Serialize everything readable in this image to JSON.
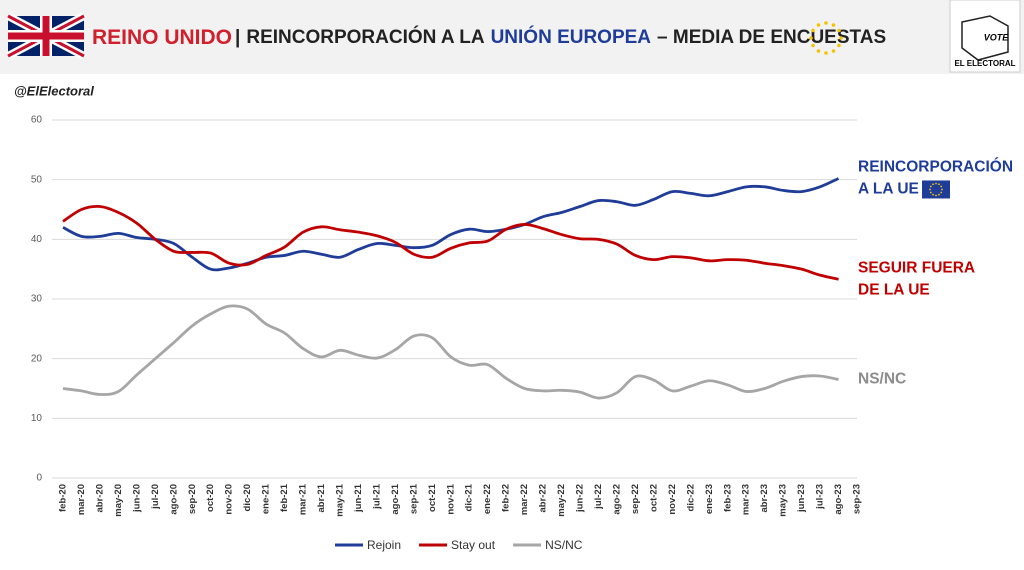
{
  "header": {
    "title_parts": [
      {
        "text": "REINO UNIDO",
        "color": "#d0202e"
      },
      {
        "text": "|",
        "color": "#222222"
      },
      {
        "text": "REINCORPORACIÓN A LA",
        "color": "#222222"
      },
      {
        "text": "UNIÓN EUROPEA",
        "color": "#1f3c99"
      },
      {
        "text": "– MEDIA DE ENCUESTAS",
        "color": "#222222"
      }
    ],
    "logo": {
      "vote": "VOTE",
      "name": "EL ELECTORAL"
    }
  },
  "source": "@ElElectoral",
  "chart_data": {
    "type": "line",
    "categories": [
      "feb-20",
      "mar-20",
      "abr-20",
      "may-20",
      "jun-20",
      "jul-20",
      "ago-20",
      "sep-20",
      "oct-20",
      "nov-20",
      "dic-20",
      "ene-21",
      "feb-21",
      "mar-21",
      "abr-21",
      "may-21",
      "jun-21",
      "jul-21",
      "ago-21",
      "sep-21",
      "oct-21",
      "nov-21",
      "dic-21",
      "ene-22",
      "feb-22",
      "mar-22",
      "abr-22",
      "may-22",
      "jun-22",
      "jul-22",
      "ago-22",
      "sep-22",
      "oct-22",
      "nov-22",
      "dic-22",
      "ene-23",
      "feb-23",
      "mar-23",
      "abr-23",
      "may-23",
      "jun-23",
      "jul-23",
      "ago-23",
      "sep-23"
    ],
    "series": [
      {
        "name": "Rejoin",
        "color": "#1f3c99",
        "values": [
          42,
          40.5,
          40.5,
          41,
          40.3,
          40,
          39.3,
          37,
          35,
          35.2,
          36,
          37,
          37.3,
          38,
          37.5,
          37,
          38.3,
          39.3,
          39,
          38.6,
          39,
          40.8,
          41.7,
          41.3,
          41.7,
          42.5,
          43.8,
          44.5,
          45.5,
          46.5,
          46.3,
          45.7,
          46.7,
          48,
          47.7,
          47.3,
          48,
          48.8,
          48.8,
          48.2,
          48,
          48.8,
          50.2,
          null
        ]
      },
      {
        "name": "Stay out",
        "color": "#c00000",
        "values": [
          43,
          45,
          45.5,
          44.5,
          42.7,
          40,
          38,
          37.8,
          37.7,
          36,
          35.8,
          37.3,
          38.7,
          41.2,
          42.1,
          41.6,
          41.2,
          40.6,
          39.5,
          37.5,
          37,
          38.5,
          39.4,
          39.7,
          41.7,
          42.5,
          41.8,
          40.8,
          40.1,
          40,
          39.2,
          37.3,
          36.6,
          37.1,
          36.9,
          36.4,
          36.6,
          36.5,
          36,
          35.6,
          35,
          34,
          33.3,
          null
        ]
      },
      {
        "name": "NS/NC",
        "color": "#a6a6a6",
        "values": [
          15,
          14.6,
          14,
          14.5,
          17.3,
          20,
          22.7,
          25.5,
          27.5,
          28.8,
          28.3,
          25.8,
          24.3,
          21.7,
          20.3,
          21.4,
          20.6,
          20.1,
          21.5,
          23.8,
          23.5,
          20.3,
          18.9,
          19,
          16.7,
          15,
          14.6,
          14.7,
          14.4,
          13.4,
          14.3,
          17,
          16.4,
          14.6,
          15.4,
          16.3,
          15.6,
          14.5,
          15,
          16.2,
          17,
          17.1,
          16.5,
          null
        ]
      }
    ],
    "ylim": [
      0,
      60
    ],
    "yticks": [
      0,
      10,
      20,
      30,
      40,
      50,
      60
    ],
    "grid": true,
    "annotations": [
      {
        "lines": [
          "REINCORPORACIÓN",
          "A LA UE"
        ],
        "color": "#1f3c99"
      },
      {
        "lines": [
          "SEGUIR FUERA",
          "DE LA UE"
        ],
        "color": "#c00000"
      },
      {
        "lines": [
          "NS/NC"
        ],
        "color": "#8c8c8c"
      }
    ]
  }
}
